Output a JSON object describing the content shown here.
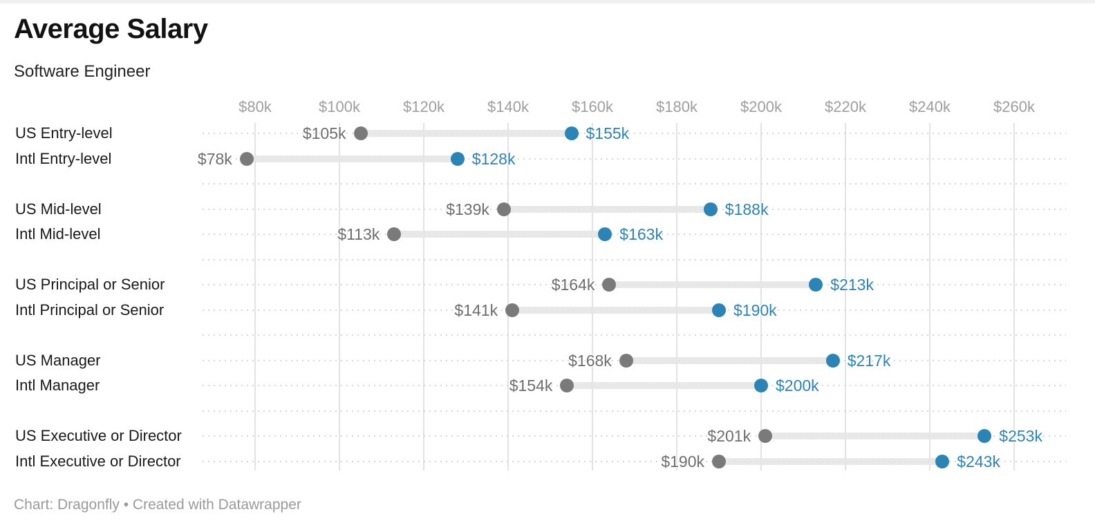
{
  "header": {
    "title": "Average Salary",
    "subtitle": "Software Engineer"
  },
  "footer": {
    "credit": "Chart: Dragonfly • Created with Datawrapper"
  },
  "chart_data": {
    "type": "dumbbell",
    "title": "Average Salary",
    "subtitle": "Software Engineer",
    "orientation": "horizontal",
    "x_axis": {
      "min": 80,
      "max": 260,
      "unit": "USD thousands",
      "ticks": [
        80,
        100,
        120,
        140,
        160,
        180,
        200,
        220,
        240,
        260
      ],
      "tick_labels": [
        "$80k",
        "$100k",
        "$120k",
        "$140k",
        "$160k",
        "$180k",
        "$200k",
        "$220k",
        "$240k",
        "$260k"
      ],
      "grid": true
    },
    "rows": [
      {
        "group": 0,
        "label": "US Entry-level",
        "start": 105,
        "end": 155,
        "start_label": "$105k",
        "end_label": "$155k"
      },
      {
        "group": 0,
        "label": "Intl Entry-level",
        "start": 78,
        "end": 128,
        "start_label": "$78k",
        "end_label": "$128k"
      },
      {
        "group": 1,
        "label": "US Mid-level",
        "start": 139,
        "end": 188,
        "start_label": "$139k",
        "end_label": "$188k"
      },
      {
        "group": 1,
        "label": "Intl Mid-level",
        "start": 113,
        "end": 163,
        "start_label": "$113k",
        "end_label": "$163k"
      },
      {
        "group": 2,
        "label": "US Principal or Senior",
        "start": 164,
        "end": 213,
        "start_label": "$164k",
        "end_label": "$213k"
      },
      {
        "group": 2,
        "label": "Intl Principal or Senior",
        "start": 141,
        "end": 190,
        "start_label": "$141k",
        "end_label": "$190k"
      },
      {
        "group": 3,
        "label": "US Manager",
        "start": 168,
        "end": 217,
        "start_label": "$168k",
        "end_label": "$217k"
      },
      {
        "group": 3,
        "label": "Intl Manager",
        "start": 154,
        "end": 200,
        "start_label": "$154k",
        "end_label": "$200k"
      },
      {
        "group": 4,
        "label": "US Executive or Director",
        "start": 201,
        "end": 253,
        "start_label": "$201k",
        "end_label": "$253k"
      },
      {
        "group": 4,
        "label": "Intl Executive or Director",
        "start": 190,
        "end": 243,
        "start_label": "$190k",
        "end_label": "$243k"
      }
    ],
    "colors": {
      "start_dot": "#7a7a7a",
      "end_dot": "#2b84b6",
      "start_label": "#6d6d6d",
      "end_label": "#2b84b6",
      "connector": "#e5e5e5",
      "gridline": "#e2e2e2",
      "dotted_line": "#d6d6d6",
      "axis_label": "#9e9e9e"
    },
    "legend_position": "none"
  }
}
